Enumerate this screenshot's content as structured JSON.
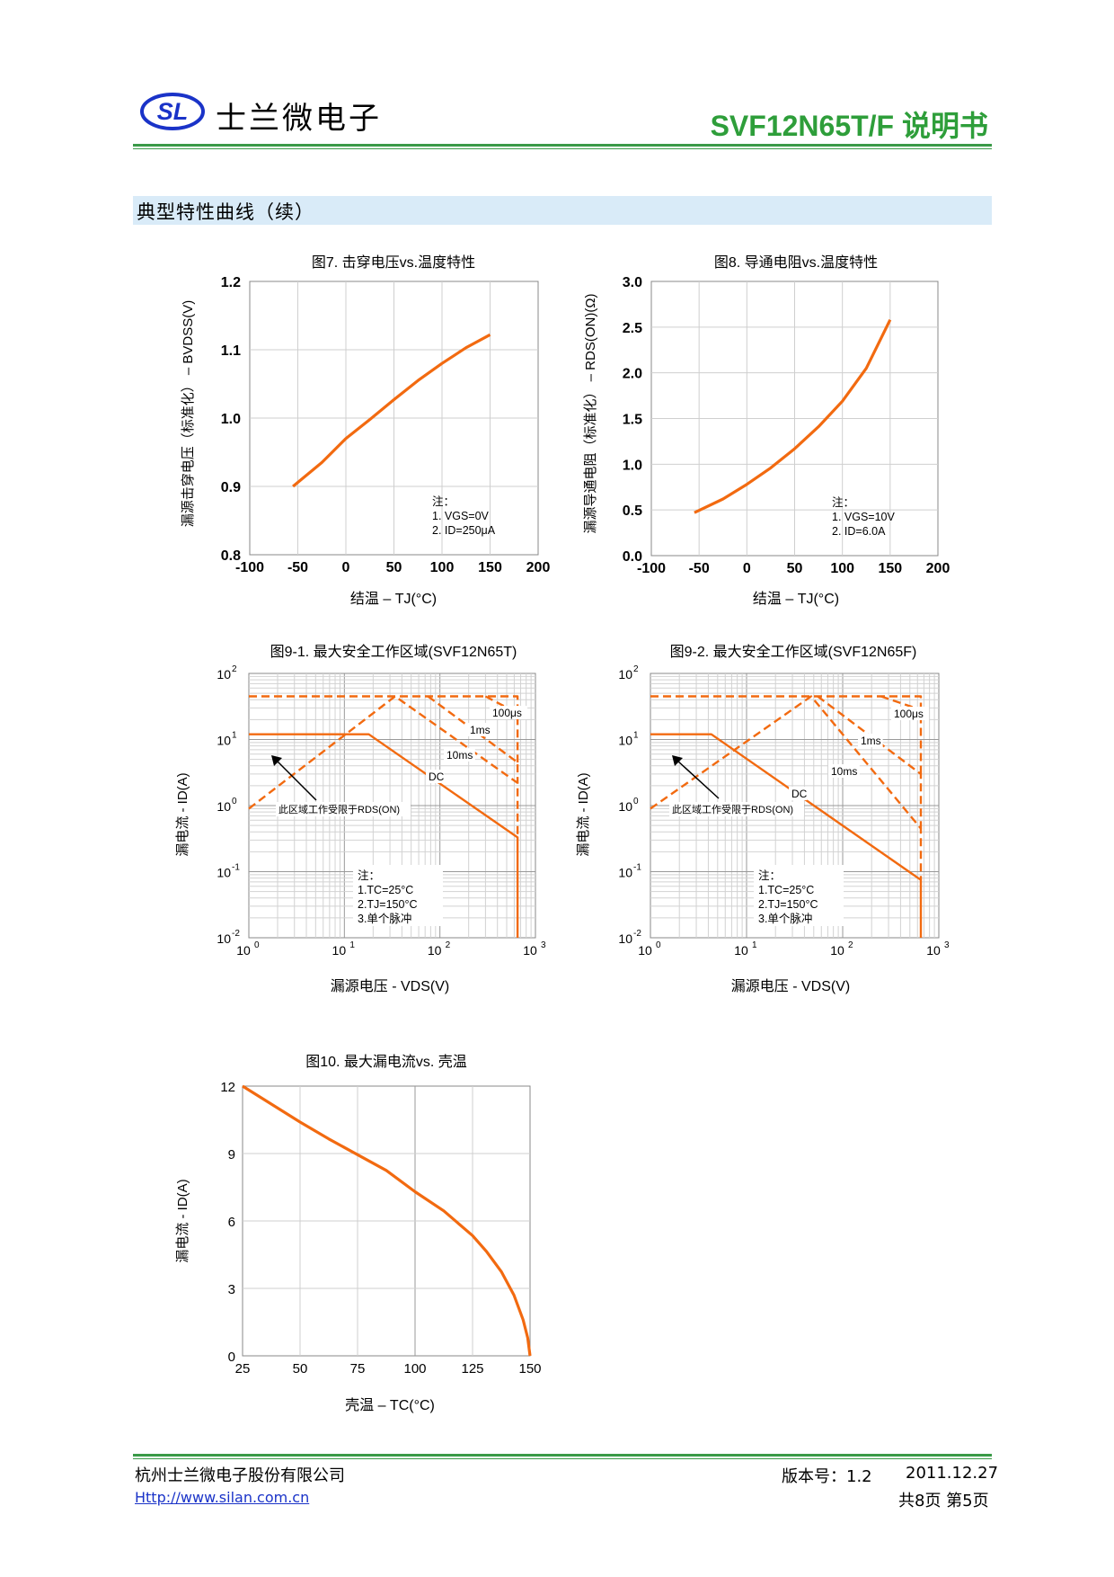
{
  "header": {
    "logo_text": "SL",
    "company": "士兰微电子",
    "doc_title": "SVF12N65T/F 说明书"
  },
  "section": {
    "title": "典型特性曲线（续）"
  },
  "colors": {
    "accent_green": "#3a9a48",
    "curve_orange": "#f26a10",
    "section_bg": "#d9ebf8",
    "grid": "#cccccc"
  },
  "chart_data": [
    {
      "id": "fig7",
      "type": "line",
      "title": "图7. 击穿电压vs.温度特性",
      "xlabel": "结温 – TJ(°C)",
      "ylabel": "漏源击穿电压（标准化） – BVDSS(V)",
      "xlim": [
        -100,
        200
      ],
      "ylim": [
        0.8,
        1.2
      ],
      "xticks": [
        -100,
        -50,
        0,
        50,
        100,
        150,
        200
      ],
      "xtick_labels": [
        "-100",
        "-50",
        "0",
        "50",
        "100",
        "150",
        "200"
      ],
      "yticks": [
        0.8,
        0.9,
        1.0,
        1.1,
        1.2
      ],
      "ytick_labels": [
        "0.8",
        "0.9",
        "1.0",
        "1.1",
        "1.2"
      ],
      "x": [
        -55,
        -25,
        0,
        25,
        50,
        75,
        100,
        125,
        150
      ],
      "y": [
        0.9,
        0.935,
        0.97,
        0.998,
        1.027,
        1.055,
        1.08,
        1.103,
        1.122
      ],
      "notes": [
        "注：",
        "1. VGS=0V",
        "2. ID=250μA"
      ]
    },
    {
      "id": "fig8",
      "type": "line",
      "title": "图8. 导通电阻vs.温度特性",
      "xlabel": "结温 – TJ(°C)",
      "ylabel": "漏源导通电阻（标准化） – RDS(ON)(Ω)",
      "xlim": [
        -100,
        200
      ],
      "ylim": [
        0.0,
        3.0
      ],
      "xticks": [
        -100,
        -50,
        0,
        50,
        100,
        150,
        200
      ],
      "xtick_labels": [
        "-100",
        "-50",
        "0",
        "50",
        "100",
        "150",
        "200"
      ],
      "yticks": [
        0.0,
        0.5,
        1.0,
        1.5,
        2.0,
        2.5,
        3.0
      ],
      "ytick_labels": [
        "0.0",
        "0.5",
        "1.0",
        "1.5",
        "2.0",
        "2.5",
        "3.0"
      ],
      "x": [
        -55,
        -25,
        0,
        25,
        50,
        75,
        100,
        125,
        150
      ],
      "y": [
        0.47,
        0.62,
        0.78,
        0.96,
        1.17,
        1.41,
        1.69,
        2.05,
        2.58
      ],
      "notes": [
        "注：",
        "1. VGS=10V",
        "2. ID=6.0A"
      ]
    },
    {
      "id": "fig9-1",
      "type": "line",
      "scale": "log-log",
      "title": "图9-1. 最大安全工作区域(SVF12N65T)",
      "xlabel": "漏源电压 - VDS(V)",
      "ylabel": "漏电流 - ID(A)",
      "xlim": [
        1,
        1000
      ],
      "ylim": [
        0.01,
        100
      ],
      "xtick_base": [
        "10",
        "10",
        "10",
        "10"
      ],
      "xtick_exp": [
        "0",
        "1",
        "2",
        "3"
      ],
      "ytick_base": [
        "10",
        "10",
        "10",
        "10",
        "10"
      ],
      "ytick_exp": [
        "2",
        "1",
        "0",
        "-1",
        "-2"
      ],
      "series": [
        {
          "name": "DC",
          "style": "solid",
          "x": [
            1,
            18,
            650,
            650
          ],
          "y": [
            12,
            12,
            0.33,
            0.01
          ]
        },
        {
          "name": "10ms",
          "style": "dashed",
          "x": [
            1,
            34,
            650,
            650
          ],
          "y": [
            0.9,
            45,
            2.2,
            0.33
          ]
        },
        {
          "name": "1ms",
          "style": "dashed",
          "x": [
            75,
            650,
            650
          ],
          "y": [
            45,
            4.5,
            2.2
          ]
        },
        {
          "name": "100μs",
          "style": "dashed",
          "x": [
            1,
            650,
            650
          ],
          "y": [
            45,
            45,
            4.5
          ]
        },
        {
          "name": "100μs-seg",
          "style": "dashed",
          "x": [
            300,
            650
          ],
          "y": [
            45,
            25
          ]
        }
      ],
      "labels": [
        "100μs",
        "1ms",
        "10ms",
        "DC"
      ],
      "annotation": "此区域工作受限于RDS(ON)",
      "notes": [
        "注：",
        "1.TC=25°C",
        "2.TJ=150°C",
        "3.单个脉冲"
      ]
    },
    {
      "id": "fig9-2",
      "type": "line",
      "scale": "log-log",
      "title": "图9-2. 最大安全工作区域(SVF12N65F)",
      "xlabel": "漏源电压 - VDS(V)",
      "ylabel": "漏电流 - ID(A)",
      "xlim": [
        1,
        1000
      ],
      "ylim": [
        0.01,
        100
      ],
      "xtick_base": [
        "10",
        "10",
        "10",
        "10"
      ],
      "xtick_exp": [
        "0",
        "1",
        "2",
        "3"
      ],
      "ytick_base": [
        "10",
        "10",
        "10",
        "10",
        "10"
      ],
      "ytick_exp": [
        "2",
        "1",
        "0",
        "-1",
        "-2"
      ],
      "series": [
        {
          "name": "DC",
          "style": "solid",
          "x": [
            1,
            4.3,
            650,
            650
          ],
          "y": [
            12,
            12,
            0.075,
            0.01
          ]
        },
        {
          "name": "10ms",
          "style": "dashed",
          "x": [
            1,
            47,
            650,
            650
          ],
          "y": [
            0.9,
            45,
            0.45,
            0.075
          ]
        },
        {
          "name": "1ms",
          "style": "dashed",
          "x": [
            55,
            650,
            650
          ],
          "y": [
            45,
            3.0,
            0.45
          ]
        },
        {
          "name": "100μs",
          "style": "dashed",
          "x": [
            1,
            650,
            650
          ],
          "y": [
            45,
            45,
            3.0
          ]
        },
        {
          "name": "100μs-seg",
          "style": "dashed",
          "x": [
            250,
            650
          ],
          "y": [
            45,
            28
          ]
        }
      ],
      "labels": [
        "100μs",
        "1ms",
        "10ms",
        "DC"
      ],
      "annotation": "此区域工作受限于RDS(ON)",
      "notes": [
        "注：",
        "1.TC=25°C",
        "2.TJ=150°C",
        "3.单个脉冲"
      ]
    },
    {
      "id": "fig10",
      "type": "line",
      "title": "图10. 最大漏电流vs. 壳温",
      "xlabel": "壳温 – TC(°C)",
      "ylabel": "漏电流 - ID(A)",
      "xlim": [
        25,
        150
      ],
      "ylim": [
        0,
        12
      ],
      "xticks": [
        25,
        50,
        75,
        100,
        125,
        150
      ],
      "xtick_labels": [
        "25",
        "50",
        "75",
        "100",
        "125",
        "150"
      ],
      "yticks": [
        0,
        3,
        6,
        9,
        12
      ],
      "ytick_labels": [
        "0",
        "3",
        "6",
        "9",
        "12"
      ],
      "x": [
        25,
        37.5,
        50,
        62.5,
        75,
        87.5,
        100,
        112.5,
        125,
        131,
        137.5,
        143,
        147,
        149,
        150
      ],
      "y": [
        12,
        11.2,
        10.4,
        9.65,
        8.95,
        8.25,
        7.3,
        6.45,
        5.35,
        4.65,
        3.75,
        2.7,
        1.6,
        0.8,
        0
      ]
    }
  ],
  "footer": {
    "company": "杭州士兰微电子股份有限公司",
    "url": "Http://www.silan.com.cn",
    "version_label": "版本号：1.2",
    "date": "2011.12.27",
    "pages": "共8页 第5页"
  }
}
